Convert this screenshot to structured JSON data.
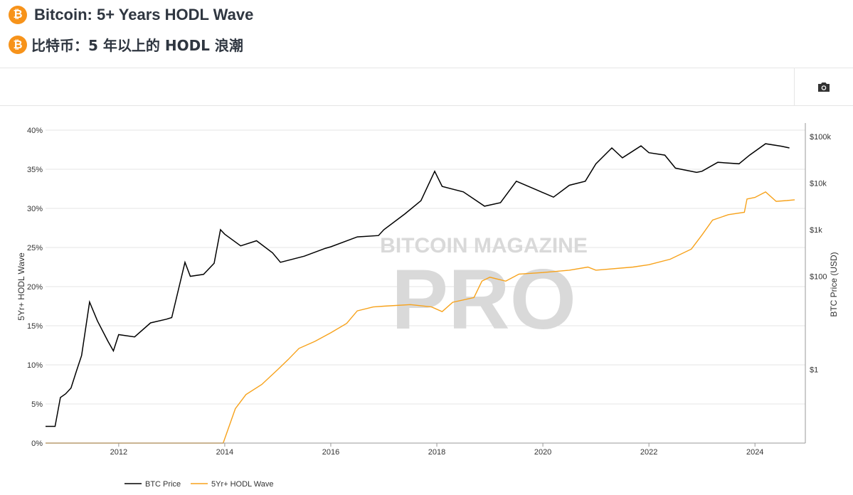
{
  "header": {
    "title_en": "Bitcoin: 5+ Years HODL Wave",
    "title_zh": "比特币：5 年以上的 HODL 浪潮",
    "icon": "bitcoin-icon"
  },
  "toolbar": {
    "camera_icon": "camera-icon"
  },
  "watermark": {
    "line1": "BITCOIN MAGAZINE",
    "line2": "PRO"
  },
  "chart_data": {
    "type": "line",
    "xlim": [
      2010.62,
      2024.95
    ],
    "x_ticks": [
      "2012",
      "2014",
      "2016",
      "2018",
      "2020",
      "2022",
      "2024"
    ],
    "y_left": {
      "label": "5Yr+ HODL Wave",
      "ticks": [
        "0%",
        "5%",
        "10%",
        "15%",
        "20%",
        "25%",
        "30%",
        "35%",
        "40%"
      ],
      "ylim": [
        0,
        40
      ]
    },
    "y_right": {
      "label": "BTC Price (USD)",
      "scale": "log",
      "ticks": [
        "$1",
        "$100",
        "$1k",
        "$10k",
        "$100k"
      ],
      "tick_values": [
        1,
        100,
        1000,
        10000,
        100000
      ]
    },
    "grid": true,
    "legend": "bottom",
    "series": [
      {
        "name": "BTC Price",
        "axis": "right",
        "color": "#000000",
        "x": [
          2010.62,
          2010.8,
          2010.9,
          2011.0,
          2011.1,
          2011.2,
          2011.3,
          2011.45,
          2011.6,
          2011.8,
          2011.9,
          2012.0,
          2012.3,
          2012.6,
          2012.9,
          2013.0,
          2013.25,
          2013.35,
          2013.6,
          2013.8,
          2013.92,
          2014.0,
          2014.3,
          2014.6,
          2014.9,
          2015.05,
          2015.5,
          2015.9,
          2016.0,
          2016.5,
          2016.9,
          2017.0,
          2017.4,
          2017.7,
          2017.96,
          2018.1,
          2018.5,
          2018.9,
          2019.2,
          2019.5,
          2019.9,
          2020.2,
          2020.5,
          2020.8,
          2021.0,
          2021.3,
          2021.5,
          2021.85,
          2022.0,
          2022.3,
          2022.5,
          2022.9,
          2023.0,
          2023.3,
          2023.7,
          2023.9,
          2024.2,
          2024.5,
          2024.65
        ],
        "y": [
          0.06,
          0.06,
          0.25,
          0.3,
          0.4,
          0.9,
          2,
          28,
          11,
          4,
          2.5,
          5.6,
          5,
          10,
          12,
          13,
          200,
          100,
          110,
          190,
          1000,
          800,
          450,
          580,
          320,
          200,
          270,
          400,
          430,
          700,
          750,
          1000,
          2200,
          4200,
          18000,
          8500,
          6500,
          3200,
          3800,
          11000,
          7000,
          5000,
          9000,
          11000,
          26000,
          57000,
          35000,
          63000,
          45000,
          40000,
          21000,
          17000,
          18000,
          28000,
          26000,
          40000,
          70000,
          62000,
          57000
        ]
      },
      {
        "name": "5Yr+ HODL Wave",
        "axis": "left",
        "color": "#f7a21b",
        "x": [
          2010.62,
          2013.97,
          2014.2,
          2014.4,
          2014.7,
          2015.0,
          2015.2,
          2015.4,
          2015.7,
          2016.0,
          2016.3,
          2016.5,
          2016.8,
          2017.0,
          2017.5,
          2017.9,
          2018.1,
          2018.3,
          2018.7,
          2018.85,
          2019.0,
          2019.3,
          2019.55,
          2020.0,
          2020.5,
          2020.85,
          2021.0,
          2021.7,
          2022.0,
          2022.4,
          2022.8,
          2023.0,
          2023.2,
          2023.5,
          2023.8,
          2023.85,
          2024.0,
          2024.2,
          2024.4,
          2024.6,
          2024.75
        ],
        "y": [
          0,
          0,
          4.4,
          6.2,
          7.5,
          9.4,
          10.7,
          12.1,
          13,
          14.1,
          15.3,
          16.9,
          17.4,
          17.5,
          17.7,
          17.4,
          16.8,
          18,
          18.6,
          20.7,
          21.2,
          20.7,
          21.6,
          21.8,
          22.1,
          22.5,
          22.1,
          22.5,
          22.8,
          23.5,
          24.8,
          26.6,
          28.5,
          29.2,
          29.5,
          31.2,
          31.4,
          32.1,
          30.9,
          31,
          31.1
        ]
      }
    ]
  }
}
